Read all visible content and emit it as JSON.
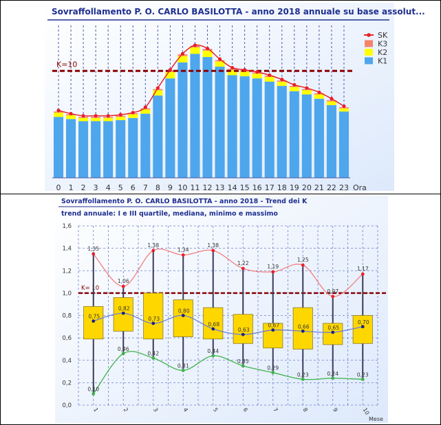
{
  "chart_data": [
    {
      "type": "bar",
      "title": "Sovraffollamento P. O. CARLO BASILOTTA - anno 2018 annuale su base assolut...",
      "xlabel": "Ora",
      "categories": [
        "0",
        "1",
        "2",
        "3",
        "4",
        "5",
        "6",
        "7",
        "8",
        "9",
        "10",
        "11",
        "12",
        "13",
        "14",
        "15",
        "16",
        "17",
        "18",
        "19",
        "20",
        "21",
        "22",
        "23"
      ],
      "stacked": true,
      "ylim": [
        0,
        14
      ],
      "threshold": {
        "label": "K=10",
        "value": 10
      },
      "series": [
        {
          "name": "K1",
          "color": "#4ea6ec",
          "values": [
            5.7,
            5.5,
            5.3,
            5.3,
            5.3,
            5.4,
            5.6,
            6.0,
            7.7,
            9.3,
            10.8,
            11.6,
            11.3,
            10.4,
            9.6,
            9.5,
            9.3,
            9.0,
            8.6,
            8.1,
            7.8,
            7.4,
            6.8,
            6.2
          ]
        },
        {
          "name": "K2",
          "color": "#ffff00",
          "values": [
            0.4,
            0.35,
            0.3,
            0.3,
            0.3,
            0.3,
            0.35,
            0.4,
            0.5,
            0.6,
            0.6,
            0.6,
            0.6,
            0.5,
            0.5,
            0.45,
            0.45,
            0.45,
            0.4,
            0.4,
            0.4,
            0.4,
            0.35,
            0.3
          ]
        },
        {
          "name": "K3",
          "color": "#f4846a",
          "values": [
            0.1,
            0.1,
            0.1,
            0.1,
            0.1,
            0.1,
            0.1,
            0.1,
            0.1,
            0.15,
            0.15,
            0.15,
            0.15,
            0.1,
            0.1,
            0.1,
            0.1,
            0.1,
            0.1,
            0.1,
            0.1,
            0.1,
            0.1,
            0.1
          ]
        },
        {
          "name": "SK",
          "type": "line",
          "color": "#e8202a",
          "values": [
            6.3,
            6.0,
            5.8,
            5.8,
            5.8,
            5.9,
            6.1,
            6.6,
            8.4,
            10.1,
            11.6,
            12.4,
            12.1,
            11.1,
            10.3,
            10.1,
            9.9,
            9.6,
            9.2,
            8.7,
            8.4,
            8.0,
            7.4,
            6.7
          ]
        }
      ],
      "legend_position": "top-right",
      "grid": "vertical dashed"
    },
    {
      "type": "box",
      "title": "Sovraffollamento P. O. CARLO BASILOTTA - anno 2018 - Trend dei K",
      "subtitle": "trend annuale: I e III quartile, mediana, minimo e massimo",
      "xlabel": "Mese",
      "categories": [
        "1",
        "2",
        "3",
        "4",
        "5",
        "6",
        "7",
        "8",
        "9",
        "10"
      ],
      "yticks": [
        "0,0",
        "0,2",
        "0,4",
        "0,6",
        "0,8",
        "1,0",
        "1,2",
        "1,4",
        "1,6"
      ],
      "ylim": [
        0,
        1.6
      ],
      "threshold": {
        "label": "K= 10",
        "value": 1.0
      },
      "q1": [
        0.59,
        0.66,
        0.59,
        0.61,
        0.59,
        0.55,
        0.51,
        0.5,
        0.54,
        0.55
      ],
      "q3": [
        0.88,
        0.96,
        1.0,
        0.94,
        0.87,
        0.81,
        0.73,
        0.87,
        0.73,
        0.8
      ],
      "median": [
        0.75,
        0.82,
        0.73,
        0.8,
        0.68,
        0.63,
        0.67,
        0.66,
        0.65,
        0.7
      ],
      "median_labels": [
        "0,75",
        "0,82",
        "0,73",
        "0,80",
        "0,68",
        "0,63",
        "0,67",
        "0,66",
        "0,65",
        "0,70"
      ],
      "max": [
        1.35,
        1.06,
        1.38,
        1.34,
        1.38,
        1.22,
        1.19,
        1.25,
        0.97,
        1.17
      ],
      "max_labels": [
        "1,35",
        "1,06",
        "1,38",
        "1,34",
        "1,38",
        "1,22",
        "1,19",
        "1,25",
        "0,97",
        "1,17"
      ],
      "min": [
        0.1,
        0.46,
        0.42,
        0.31,
        0.44,
        0.35,
        0.29,
        0.23,
        0.24,
        0.23
      ],
      "min_labels": [
        "0,10",
        "0,46",
        "0,42",
        "0,31",
        "0,44",
        "0,35",
        "0,29",
        "0,23",
        "0,24",
        "0,23"
      ],
      "colors": {
        "box": "#ffd700",
        "max_line": "#f08080",
        "min_line": "#3cb34a",
        "median_line": "#6b7fd7",
        "threshold": "#8b0000"
      },
      "grid": "dashed"
    }
  ]
}
